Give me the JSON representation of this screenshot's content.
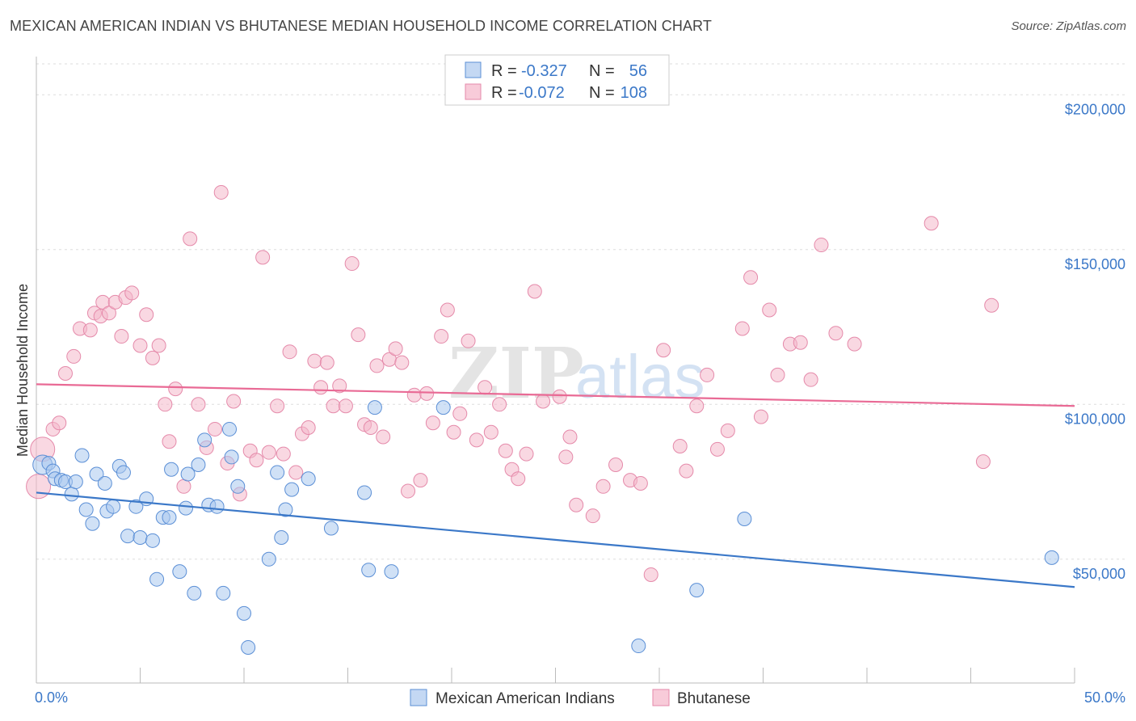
{
  "header": {
    "title": "MEXICAN AMERICAN INDIAN VS BHUTANESE MEDIAN HOUSEHOLD INCOME CORRELATION CHART",
    "source": "Source: ZipAtlas.com"
  },
  "watermark": {
    "zip": "ZIP",
    "atlas": "atlas"
  },
  "colors": {
    "blue": "#3b78c8",
    "blue_fill": "#a9c8ee",
    "pink": "#e96a95",
    "pink_fill": "#f4b8cb",
    "grid": "#dddddd"
  },
  "legend": {
    "rows": [
      {
        "r_label": "R =",
        "r_value": "-0.327",
        "n_label": "N =",
        "n_value": "56"
      },
      {
        "r_label": "R =",
        "r_value": "-0.072",
        "n_label": "N =",
        "n_value": "108"
      }
    ]
  },
  "chart_data": {
    "type": "scatter",
    "ylabel": "Median Household Income",
    "xlim": [
      0,
      50
    ],
    "ylim": [
      10000,
      210000
    ],
    "x_tick_labels": [
      "0.0%",
      "50.0%"
    ],
    "y_ticks": [
      50000,
      100000,
      150000,
      200000
    ],
    "y_tick_labels": [
      "$50,000",
      "$100,000",
      "$150,000",
      "$200,000"
    ],
    "grid": true,
    "legend_position": "top-center",
    "series": [
      {
        "name": "Mexican American Indians",
        "color": "#3b78c8",
        "trend": [
          [
            0,
            71500
          ],
          [
            50,
            41000
          ]
        ],
        "points": [
          [
            0.3,
            80500
          ],
          [
            0.6,
            81000
          ],
          [
            0.8,
            78500
          ],
          [
            0.9,
            76000
          ],
          [
            1.2,
            75500
          ],
          [
            1.4,
            75000
          ],
          [
            1.7,
            71000
          ],
          [
            1.9,
            75000
          ],
          [
            2.2,
            83500
          ],
          [
            2.4,
            66000
          ],
          [
            2.7,
            61500
          ],
          [
            2.9,
            77500
          ],
          [
            3.3,
            74500
          ],
          [
            3.4,
            65500
          ],
          [
            3.7,
            67000
          ],
          [
            4.0,
            80000
          ],
          [
            4.2,
            78000
          ],
          [
            4.4,
            57500
          ],
          [
            4.8,
            67000
          ],
          [
            5.0,
            57000
          ],
          [
            5.3,
            69500
          ],
          [
            5.6,
            56000
          ],
          [
            5.8,
            43500
          ],
          [
            6.1,
            63500
          ],
          [
            6.4,
            63500
          ],
          [
            6.5,
            79000
          ],
          [
            6.9,
            46000
          ],
          [
            7.2,
            66500
          ],
          [
            7.3,
            77500
          ],
          [
            7.6,
            39000
          ],
          [
            7.8,
            80500
          ],
          [
            8.1,
            88500
          ],
          [
            8.3,
            67500
          ],
          [
            8.7,
            67000
          ],
          [
            9.0,
            39000
          ],
          [
            9.3,
            92000
          ],
          [
            9.4,
            83000
          ],
          [
            9.7,
            73500
          ],
          [
            10.0,
            32500
          ],
          [
            10.2,
            21500
          ],
          [
            11.2,
            50000
          ],
          [
            11.6,
            78000
          ],
          [
            11.8,
            57000
          ],
          [
            12.0,
            66000
          ],
          [
            12.3,
            72500
          ],
          [
            13.1,
            76000
          ],
          [
            14.2,
            60000
          ],
          [
            15.8,
            71500
          ],
          [
            16.0,
            46500
          ],
          [
            16.3,
            99000
          ],
          [
            17.1,
            46000
          ],
          [
            19.6,
            99000
          ],
          [
            29.0,
            22000
          ],
          [
            31.8,
            40000
          ],
          [
            34.1,
            63000
          ],
          [
            48.9,
            50500
          ]
        ]
      },
      {
        "name": "Bhutanese",
        "color": "#e96a95",
        "trend": [
          [
            0,
            106500
          ],
          [
            50,
            99500
          ]
        ],
        "points": [
          [
            0.1,
            73500
          ],
          [
            0.3,
            85500
          ],
          [
            0.8,
            92000
          ],
          [
            1.1,
            94000
          ],
          [
            1.4,
            110000
          ],
          [
            1.8,
            115500
          ],
          [
            2.1,
            124500
          ],
          [
            2.6,
            124000
          ],
          [
            2.8,
            129500
          ],
          [
            3.1,
            128500
          ],
          [
            3.2,
            133000
          ],
          [
            3.5,
            129500
          ],
          [
            3.8,
            133000
          ],
          [
            4.1,
            122000
          ],
          [
            4.3,
            134500
          ],
          [
            4.6,
            136000
          ],
          [
            5.0,
            119000
          ],
          [
            5.3,
            129000
          ],
          [
            5.6,
            115000
          ],
          [
            5.9,
            119000
          ],
          [
            6.2,
            100000
          ],
          [
            6.4,
            88000
          ],
          [
            6.7,
            105000
          ],
          [
            7.1,
            73500
          ],
          [
            7.4,
            153500
          ],
          [
            7.8,
            100000
          ],
          [
            8.2,
            86000
          ],
          [
            8.6,
            92000
          ],
          [
            8.9,
            168500
          ],
          [
            9.2,
            81000
          ],
          [
            9.5,
            101000
          ],
          [
            9.8,
            71000
          ],
          [
            10.3,
            85000
          ],
          [
            10.6,
            82000
          ],
          [
            10.9,
            147500
          ],
          [
            11.2,
            84500
          ],
          [
            11.6,
            99500
          ],
          [
            11.9,
            84000
          ],
          [
            12.2,
            117000
          ],
          [
            12.5,
            78000
          ],
          [
            12.8,
            90500
          ],
          [
            13.1,
            92500
          ],
          [
            13.4,
            114000
          ],
          [
            13.7,
            105500
          ],
          [
            14.0,
            113500
          ],
          [
            14.3,
            99500
          ],
          [
            14.6,
            106000
          ],
          [
            14.9,
            99500
          ],
          [
            15.2,
            145500
          ],
          [
            15.5,
            122500
          ],
          [
            15.8,
            93500
          ],
          [
            16.1,
            92500
          ],
          [
            16.4,
            112500
          ],
          [
            16.7,
            89500
          ],
          [
            17.0,
            114500
          ],
          [
            17.3,
            118000
          ],
          [
            17.6,
            113500
          ],
          [
            17.9,
            72000
          ],
          [
            18.2,
            103000
          ],
          [
            18.5,
            75500
          ],
          [
            18.8,
            103500
          ],
          [
            19.1,
            94000
          ],
          [
            19.5,
            122000
          ],
          [
            19.8,
            130500
          ],
          [
            20.1,
            91000
          ],
          [
            20.4,
            97000
          ],
          [
            20.8,
            120500
          ],
          [
            21.2,
            88500
          ],
          [
            21.6,
            105500
          ],
          [
            21.9,
            91000
          ],
          [
            22.3,
            100000
          ],
          [
            22.6,
            85000
          ],
          [
            22.9,
            79000
          ],
          [
            23.2,
            76000
          ],
          [
            23.6,
            84000
          ],
          [
            24.0,
            136500
          ],
          [
            24.4,
            101000
          ],
          [
            25.2,
            102500
          ],
          [
            25.5,
            83000
          ],
          [
            25.7,
            89500
          ],
          [
            26.0,
            67500
          ],
          [
            26.8,
            64000
          ],
          [
            27.3,
            73500
          ],
          [
            27.9,
            80500
          ],
          [
            28.6,
            75500
          ],
          [
            29.1,
            74500
          ],
          [
            29.6,
            45000
          ],
          [
            30.2,
            117500
          ],
          [
            31.0,
            86500
          ],
          [
            31.3,
            78500
          ],
          [
            31.8,
            99500
          ],
          [
            32.3,
            109500
          ],
          [
            32.8,
            85500
          ],
          [
            33.3,
            91500
          ],
          [
            34.0,
            124500
          ],
          [
            34.4,
            141000
          ],
          [
            34.9,
            96000
          ],
          [
            35.3,
            130500
          ],
          [
            35.7,
            109500
          ],
          [
            36.3,
            119500
          ],
          [
            36.8,
            120000
          ],
          [
            37.3,
            108000
          ],
          [
            37.8,
            151500
          ],
          [
            38.5,
            123000
          ],
          [
            39.4,
            119500
          ],
          [
            43.1,
            158500
          ],
          [
            45.6,
            81500
          ],
          [
            46.0,
            132000
          ]
        ]
      }
    ]
  },
  "bottom_legend": [
    "Mexican American Indians",
    "Bhutanese"
  ]
}
